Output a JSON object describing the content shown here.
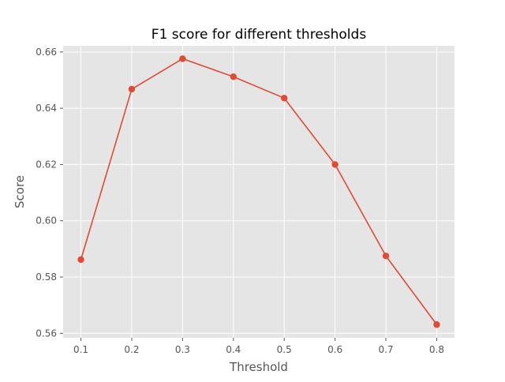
{
  "chart_data": {
    "type": "line",
    "title": "F1 score for different thresholds",
    "xlabel": "Threshold",
    "ylabel": "Score",
    "x": [
      0.1,
      0.2,
      0.3,
      0.4,
      0.5,
      0.6,
      0.7,
      0.8
    ],
    "series": [
      {
        "values": [
          0.5862,
          0.6468,
          0.6576,
          0.6512,
          0.6436,
          0.62,
          0.5875,
          0.5631
        ],
        "color": "#E24A33",
        "marker": "circle"
      }
    ],
    "xticks": [
      0.1,
      0.2,
      0.3,
      0.4,
      0.5,
      0.6,
      0.7,
      0.8
    ],
    "xtick_labels": [
      "0.1",
      "0.2",
      "0.3",
      "0.4",
      "0.5",
      "0.6",
      "0.7",
      "0.8"
    ],
    "yticks": [
      0.56,
      0.58,
      0.6,
      0.62,
      0.64,
      0.66
    ],
    "ytick_labels": [
      "0.56",
      "0.58",
      "0.60",
      "0.62",
      "0.64",
      "0.66"
    ],
    "xlim": [
      0.065,
      0.835
    ],
    "ylim": [
      0.5584,
      0.6622
    ],
    "grid": true,
    "style": "ggplot",
    "background_color": "#E5E5E5",
    "grid_color": "#FFFFFF",
    "text_color": "#555555",
    "title_color": "#000000"
  }
}
